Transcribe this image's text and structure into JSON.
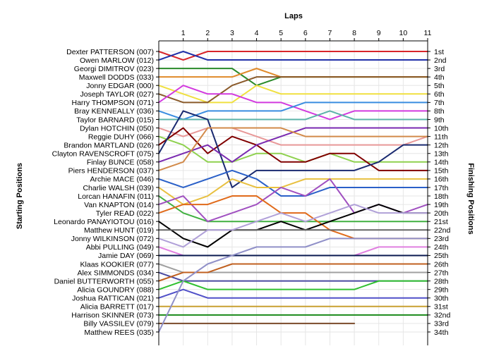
{
  "chart_data": {
    "type": "line",
    "title": "",
    "xlabel": "Laps",
    "ylabel_left": "Starting Positions",
    "ylabel_right": "Finishing Positions",
    "x_ticks": [
      1,
      2,
      3,
      4,
      5,
      6,
      7,
      8,
      9,
      10,
      11
    ],
    "xlim": [
      0,
      11
    ],
    "ylim": [
      1,
      34
    ],
    "y_reversed": true,
    "grid": true,
    "finishing_labels": [
      "1st",
      "2nd",
      "3rd",
      "4th",
      "5th",
      "6th",
      "7th",
      "8th",
      "9th",
      "10th",
      "11th",
      "12th",
      "13th",
      "14th",
      "15th",
      "16th",
      "17th",
      "18th",
      "19th",
      "20th",
      "21st",
      "22nd",
      "23rd",
      "24th",
      "25th",
      "26th",
      "27th",
      "28th",
      "29th",
      "30th",
      "31st",
      "32nd",
      "33rd",
      "34th"
    ],
    "series": [
      {
        "name": "Dexter PATTERSON (007)",
        "color": "#d8252b",
        "positions": [
          1,
          2,
          1,
          1,
          1,
          1,
          1,
          1,
          1,
          1,
          1,
          1
        ]
      },
      {
        "name": "Owen MARLOW (012)",
        "color": "#1f2fa8",
        "positions": [
          2,
          1,
          2,
          2,
          2,
          2,
          2,
          2,
          2,
          2,
          2,
          2
        ]
      },
      {
        "name": "Georgi DIMITROV (023)",
        "color": "#2a8a2a",
        "positions": [
          3,
          3,
          3,
          3,
          5,
          4,
          4,
          4,
          4,
          4,
          4,
          4
        ]
      },
      {
        "name": "Maxwell DODDS (033)",
        "color": "#e08a2a",
        "positions": [
          4,
          4,
          4,
          4,
          3,
          4,
          4,
          4,
          4,
          4,
          4,
          4
        ]
      },
      {
        "name": "Jonny EDGAR (000)",
        "color": "#f0e040",
        "positions": [
          5,
          6,
          7,
          7,
          5,
          6,
          6,
          6,
          6,
          6,
          6,
          6
        ]
      },
      {
        "name": "Joseph TAYLOR (027)",
        "color": "#8a5a2a",
        "positions": [
          6,
          7,
          7,
          5,
          4,
          4,
          4,
          4,
          4,
          4,
          4,
          4
        ]
      },
      {
        "name": "Harry THOMPSON (071)",
        "color": "#d23adf",
        "positions": [
          7,
          5,
          6,
          6,
          7,
          7,
          8,
          9,
          8,
          8,
          8,
          8
        ]
      },
      {
        "name": "Bray KENNEALLY (036)",
        "color": "#3a8de0",
        "positions": [
          8,
          9,
          8,
          8,
          8,
          8,
          7,
          7,
          7,
          7,
          7,
          7
        ]
      },
      {
        "name": "Taylor BARNARD (015)",
        "color": "#5bb3a8",
        "positions": [
          9,
          9,
          9,
          9,
          9,
          9,
          9,
          8,
          9,
          9,
          9,
          9
        ]
      },
      {
        "name": "Dylan HOTCHIN (050)",
        "color": "#e89898",
        "positions": [
          10,
          11,
          10,
          10,
          11,
          12,
          12,
          12,
          12,
          12,
          12,
          11
        ]
      },
      {
        "name": "Reggie DUHY (066)",
        "color": "#8fd14f",
        "positions": [
          11,
          12,
          14,
          14,
          13,
          13,
          14,
          13,
          14,
          14,
          14,
          14
        ]
      },
      {
        "name": "Brandon MARTLAND (026)",
        "color": "#800000",
        "positions": [
          12,
          10,
          13,
          11,
          12,
          14,
          14,
          13,
          13,
          15,
          15,
          15
        ]
      },
      {
        "name": "Clayton RAVENSCROFT (075)",
        "color": "#1a2a70",
        "positions": [
          13,
          8,
          9,
          17,
          15,
          15,
          15,
          15,
          15,
          14,
          12,
          12
        ]
      },
      {
        "name": "Finlay BUNCE (058)",
        "color": "#7a2ab0",
        "positions": [
          14,
          13,
          12,
          14,
          12,
          11,
          10,
          10,
          10,
          10,
          10,
          10
        ]
      },
      {
        "name": "Piers HENDERSON (037)",
        "color": "#d28a4a",
        "positions": [
          15,
          14,
          10,
          10,
          10,
          10,
          11,
          11,
          11,
          11,
          11,
          11
        ]
      },
      {
        "name": "Archie MACE (046)",
        "color": "#2a60c8",
        "positions": [
          16,
          17,
          16,
          15,
          16,
          18,
          18,
          17,
          17,
          17,
          17,
          17
        ]
      },
      {
        "name": "Charlie WALSH (039)",
        "color": "#e8c040",
        "positions": [
          17,
          19,
          18,
          16,
          17,
          17,
          16,
          16,
          16,
          16,
          16,
          16
        ]
      },
      {
        "name": "Lorcan HANAFIN (011)",
        "color": "#40b040",
        "positions": [
          18,
          20,
          21,
          21,
          21,
          21,
          21,
          21,
          21,
          21,
          21,
          21
        ]
      },
      {
        "name": "Van KNAPTON (014)",
        "color": "#a050c0",
        "positions": [
          19,
          18,
          21,
          20,
          19,
          17,
          18,
          16,
          20,
          19,
          20,
          19
        ]
      },
      {
        "name": "Tyler READ (022)",
        "color": "#e06a1a",
        "positions": [
          20,
          19,
          19,
          18,
          18,
          20,
          20,
          22,
          23,
          23,
          23,
          23
        ]
      },
      {
        "name": "Leonardo PANAYIOTOU (016)",
        "color": "#000000",
        "positions": [
          21,
          23,
          24,
          22,
          22,
          21,
          22,
          21,
          20,
          19,
          20,
          20
        ]
      },
      {
        "name": "Matthew HUNT (019)",
        "color": "#666666",
        "positions": [
          22,
          22,
          22,
          22,
          22,
          22,
          22,
          22,
          22,
          22,
          22,
          22
        ]
      },
      {
        "name": "Jonny WILKINSON (072)",
        "color": "#b0a0d8",
        "positions": [
          23,
          24,
          22,
          22,
          21,
          20,
          21,
          20,
          19,
          20,
          20,
          20
        ]
      },
      {
        "name": "Abbi PULLING (049)",
        "color": "#e080e0",
        "positions": [
          24,
          25,
          25,
          25,
          25,
          25,
          25,
          25,
          25,
          24,
          24,
          24
        ]
      },
      {
        "name": "Jamie DAY (069)",
        "color": "#0a1a50",
        "positions": [
          25,
          25,
          25,
          25,
          25,
          25,
          25,
          25,
          25,
          25,
          25,
          25
        ]
      },
      {
        "name": "Klaas KOOKIER (077)",
        "color": "#a0a0a0",
        "positions": [
          26,
          27,
          27,
          27,
          27,
          27,
          27,
          27,
          27,
          27,
          27,
          27
        ]
      },
      {
        "name": "Alex SIMMONDS (034)",
        "color": "#4a4aa0",
        "positions": [
          27,
          28,
          28,
          28,
          28,
          28,
          28,
          28,
          28,
          28,
          28,
          28
        ]
      },
      {
        "name": "Daniel BUTTERWORTH (055)",
        "color": "#c06020",
        "positions": [
          28,
          27,
          27,
          26,
          26,
          26,
          26,
          26,
          26,
          26,
          26,
          26
        ]
      },
      {
        "name": "Alicia GOUNDRY (088)",
        "color": "#30c030",
        "positions": [
          29,
          28,
          29,
          29,
          29,
          29,
          29,
          29,
          29,
          28,
          28,
          28
        ]
      },
      {
        "name": "Joshua RATTICAN (021)",
        "color": "#5050c8",
        "positions": [
          30,
          29,
          30,
          30,
          30,
          30,
          30,
          30,
          30,
          30,
          30,
          30
        ]
      },
      {
        "name": "Alicia BARRETT (017)",
        "color": "#c8a030",
        "positions": [
          31,
          31,
          31,
          31,
          31,
          31,
          31,
          31,
          31,
          31,
          31,
          31
        ]
      },
      {
        "name": "Harrison SKINNER (073)",
        "color": "#1a8a1a",
        "positions": [
          32,
          32,
          32,
          32,
          32,
          32,
          32,
          32,
          32,
          32,
          32,
          32
        ]
      },
      {
        "name": "Billy VASSILEV (079)",
        "color": "#7a4a2a",
        "positions": [
          33,
          33,
          33,
          33,
          33,
          33,
          33,
          33,
          33
        ]
      },
      {
        "name": "Matthew REES (035)",
        "color": "#9090c8",
        "positions": [
          34,
          28,
          26,
          25,
          24,
          24,
          24,
          23,
          23,
          23,
          23,
          23
        ]
      }
    ]
  }
}
